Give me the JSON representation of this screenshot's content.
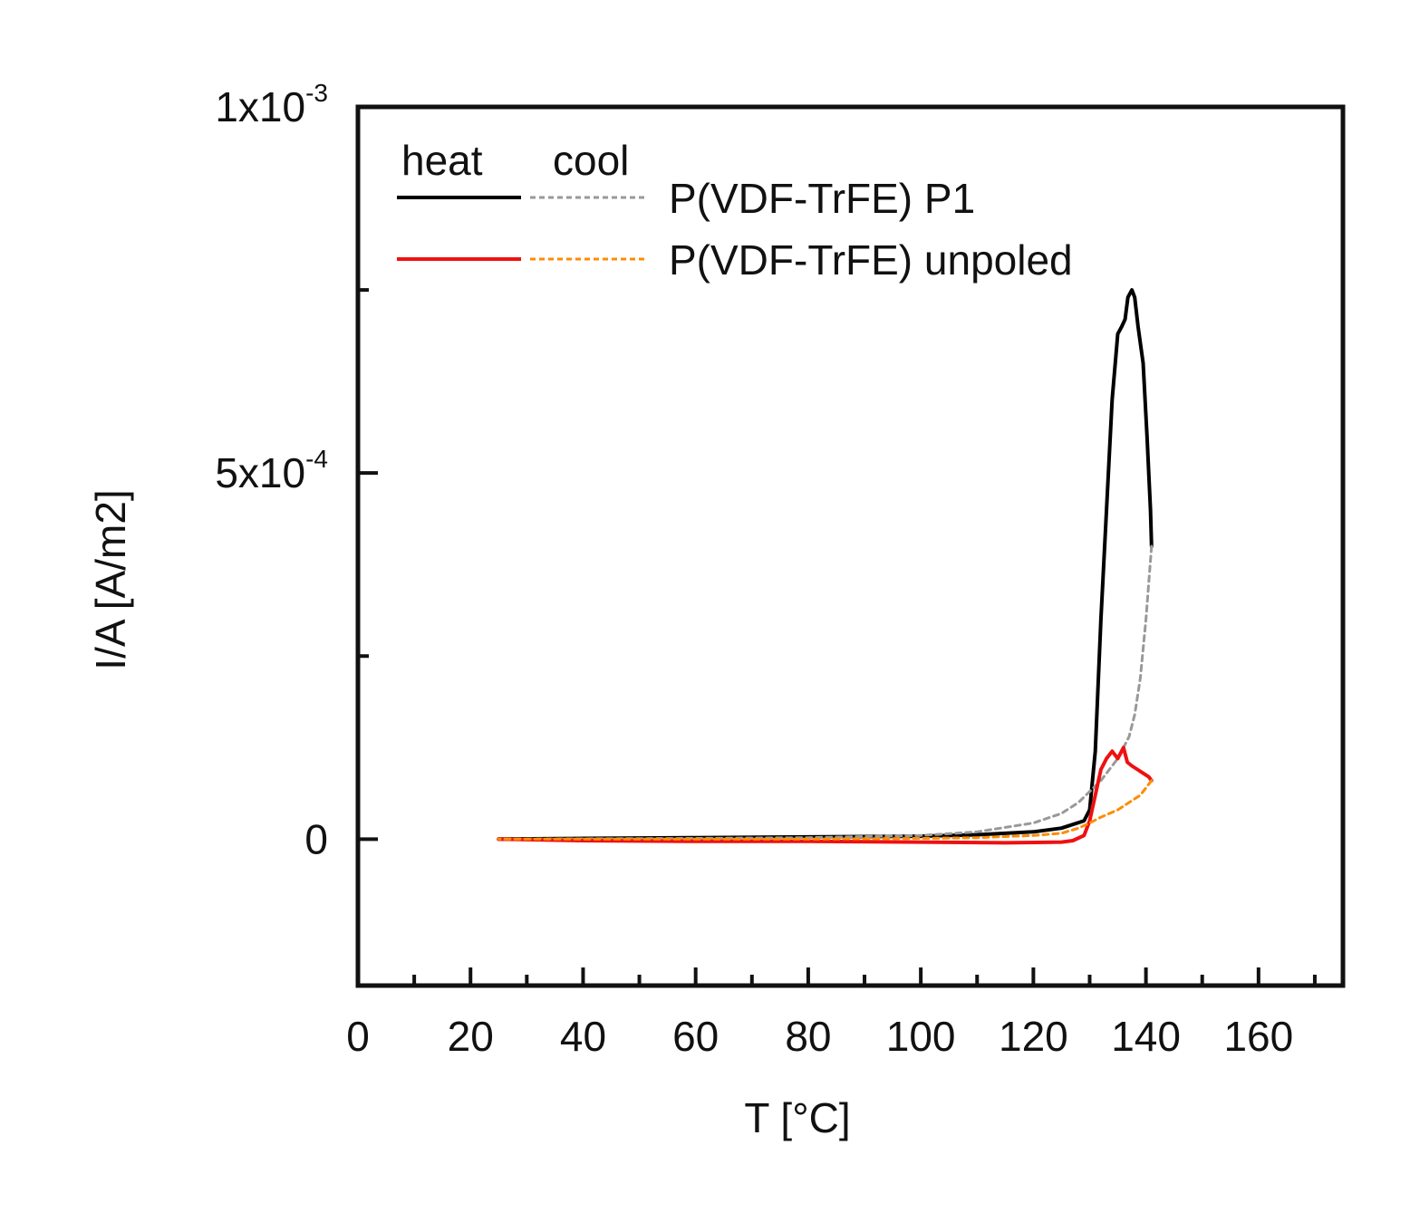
{
  "chart_data": {
    "type": "line",
    "title": "",
    "xlabel": "T [°C]",
    "ylabel": "I/A  [A/m2]",
    "xlim": [
      0,
      175
    ],
    "ylim": [
      -0.0002,
      0.001
    ],
    "grid": false,
    "legend_placement": "top-left",
    "x_ticks": [
      {
        "value": 0,
        "label": "0"
      },
      {
        "value": 20,
        "label": "20"
      },
      {
        "value": 40,
        "label": "40"
      },
      {
        "value": 60,
        "label": "60"
      },
      {
        "value": 80,
        "label": "80"
      },
      {
        "value": 100,
        "label": "100"
      },
      {
        "value": 120,
        "label": "120"
      },
      {
        "value": 140,
        "label": "140"
      },
      {
        "value": 160,
        "label": "160"
      }
    ],
    "x_minor_ticks": [
      10,
      30,
      50,
      70,
      90,
      110,
      130,
      150,
      170
    ],
    "y_ticks": [
      {
        "value": 0,
        "mantissa": "0",
        "exponent": ""
      },
      {
        "value": 0.0005,
        "mantissa": "5x10",
        "exponent": "-4"
      },
      {
        "value": 0.001,
        "mantissa": "1x10",
        "exponent": "-3"
      }
    ],
    "y_minor_ticks": [
      0.00025,
      0.00075
    ],
    "legend": {
      "headers": {
        "heat": "heat",
        "cool": "cool"
      },
      "entries": [
        {
          "label": "P(VDF-TrFE) P1",
          "heat_color": "#000000",
          "cool_color": "#999999"
        },
        {
          "label": "P(VDF-TrFE) unpoled",
          "heat_color": "#ee1111",
          "cool_color": "#ff8c00"
        }
      ]
    },
    "series": [
      {
        "name": "P(VDF-TrFE) P1 heat",
        "color": "#000000",
        "dashed": false,
        "points": [
          [
            25,
            0
          ],
          [
            40,
            1e-06
          ],
          [
            60,
            2e-06
          ],
          [
            80,
            3e-06
          ],
          [
            100,
            4e-06
          ],
          [
            110,
            6e-06
          ],
          [
            120,
            1e-05
          ],
          [
            125,
            1.5e-05
          ],
          [
            129,
            2.5e-05
          ],
          [
            130,
            4e-05
          ],
          [
            131,
            0.00012
          ],
          [
            132,
            0.0003
          ],
          [
            133,
            0.00045
          ],
          [
            134,
            0.0006
          ],
          [
            135,
            0.00069
          ],
          [
            135.7,
            0.0007
          ],
          [
            136.3,
            0.00071
          ],
          [
            136.8,
            0.00074
          ],
          [
            137.5,
            0.00075
          ],
          [
            138,
            0.00074
          ],
          [
            138.6,
            0.0007
          ],
          [
            139.5,
            0.00065
          ],
          [
            140.2,
            0.00055
          ],
          [
            140.8,
            0.00045
          ],
          [
            141,
            0.0004
          ]
        ]
      },
      {
        "name": "P(VDF-TrFE) P1 cool",
        "color": "#999999",
        "dashed": true,
        "points": [
          [
            141,
            0.0004
          ],
          [
            140.5,
            0.00035
          ],
          [
            140,
            0.0003
          ],
          [
            139.5,
            0.00026
          ],
          [
            139,
            0.00022
          ],
          [
            138,
            0.00017
          ],
          [
            137,
            0.00014
          ],
          [
            135,
            0.00011
          ],
          [
            132,
            8e-05
          ],
          [
            128,
            5e-05
          ],
          [
            125,
            3.5e-05
          ],
          [
            120,
            2.2e-05
          ],
          [
            110,
            1e-05
          ],
          [
            100,
            5e-06
          ],
          [
            80,
            2e-06
          ],
          [
            60,
            1e-06
          ],
          [
            25,
            0
          ]
        ]
      },
      {
        "name": "P(VDF-TrFE) unpoled heat",
        "color": "#ee1111",
        "dashed": false,
        "points": [
          [
            25,
            0
          ],
          [
            40,
            -2e-06
          ],
          [
            60,
            -3e-06
          ],
          [
            80,
            -3e-06
          ],
          [
            100,
            -4e-06
          ],
          [
            115,
            -5e-06
          ],
          [
            125,
            -4e-06
          ],
          [
            127,
            -2e-06
          ],
          [
            129,
            5e-06
          ],
          [
            130,
            2.5e-05
          ],
          [
            131,
            6e-05
          ],
          [
            132,
            9.5e-05
          ],
          [
            133,
            0.00011
          ],
          [
            134,
            0.00012
          ],
          [
            135,
            0.00011
          ],
          [
            136,
            0.000125
          ],
          [
            136.7,
            0.000105
          ],
          [
            137.5,
            0.0001
          ],
          [
            138.5,
            9.5e-05
          ],
          [
            139.5,
            9e-05
          ],
          [
            140.5,
            8.5e-05
          ],
          [
            141,
            8e-05
          ]
        ]
      },
      {
        "name": "P(VDF-TrFE) unpoled cool",
        "color": "#ff8c00",
        "dashed": true,
        "points": [
          [
            141,
            8e-05
          ],
          [
            140,
            7e-05
          ],
          [
            139,
            6e-05
          ],
          [
            137,
            5e-05
          ],
          [
            135,
            4e-05
          ],
          [
            132,
            3e-05
          ],
          [
            130,
            2.2e-05
          ],
          [
            128,
            1.5e-05
          ],
          [
            125,
            8e-06
          ],
          [
            120,
            5e-06
          ],
          [
            110,
            2e-06
          ],
          [
            100,
            1e-06
          ],
          [
            80,
            0
          ],
          [
            60,
            0
          ],
          [
            25,
            0
          ]
        ]
      }
    ]
  }
}
